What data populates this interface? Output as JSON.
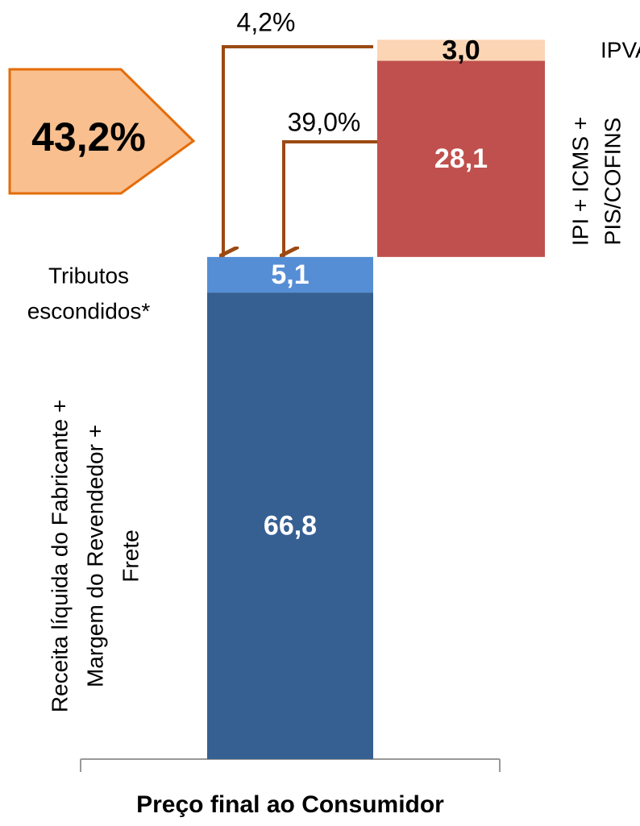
{
  "chart_data": {
    "type": "waterfall",
    "categories": [
      "Preço final ao Consumidor"
    ],
    "series": [
      {
        "name": [
          "Receita líquida do Fabricante +",
          "Margem do Revendedor +",
          "Frete"
        ],
        "color": "#376092",
        "values": [
          66.8
        ],
        "value_labels": [
          "66,8"
        ]
      },
      {
        "name": [
          "Tributos",
          "escondidos*"
        ],
        "color": "#558ed5",
        "values": [
          5.1
        ],
        "value_labels": [
          "5,1"
        ]
      },
      {
        "name": [
          "IPI + ICMS +",
          "PIS/COFINS"
        ],
        "color": "#c0504d",
        "values": [
          28.1
        ],
        "value_labels": [
          "28,1"
        ]
      },
      {
        "name": [
          "IPVA"
        ],
        "color": "#fcd5b5",
        "values": [
          3.0
        ],
        "value_labels": [
          "3,0"
        ]
      }
    ],
    "annotations": [
      "43,2%",
      "4,2%",
      "39,0%"
    ],
    "ylim": [
      0,
      105
    ]
  }
}
